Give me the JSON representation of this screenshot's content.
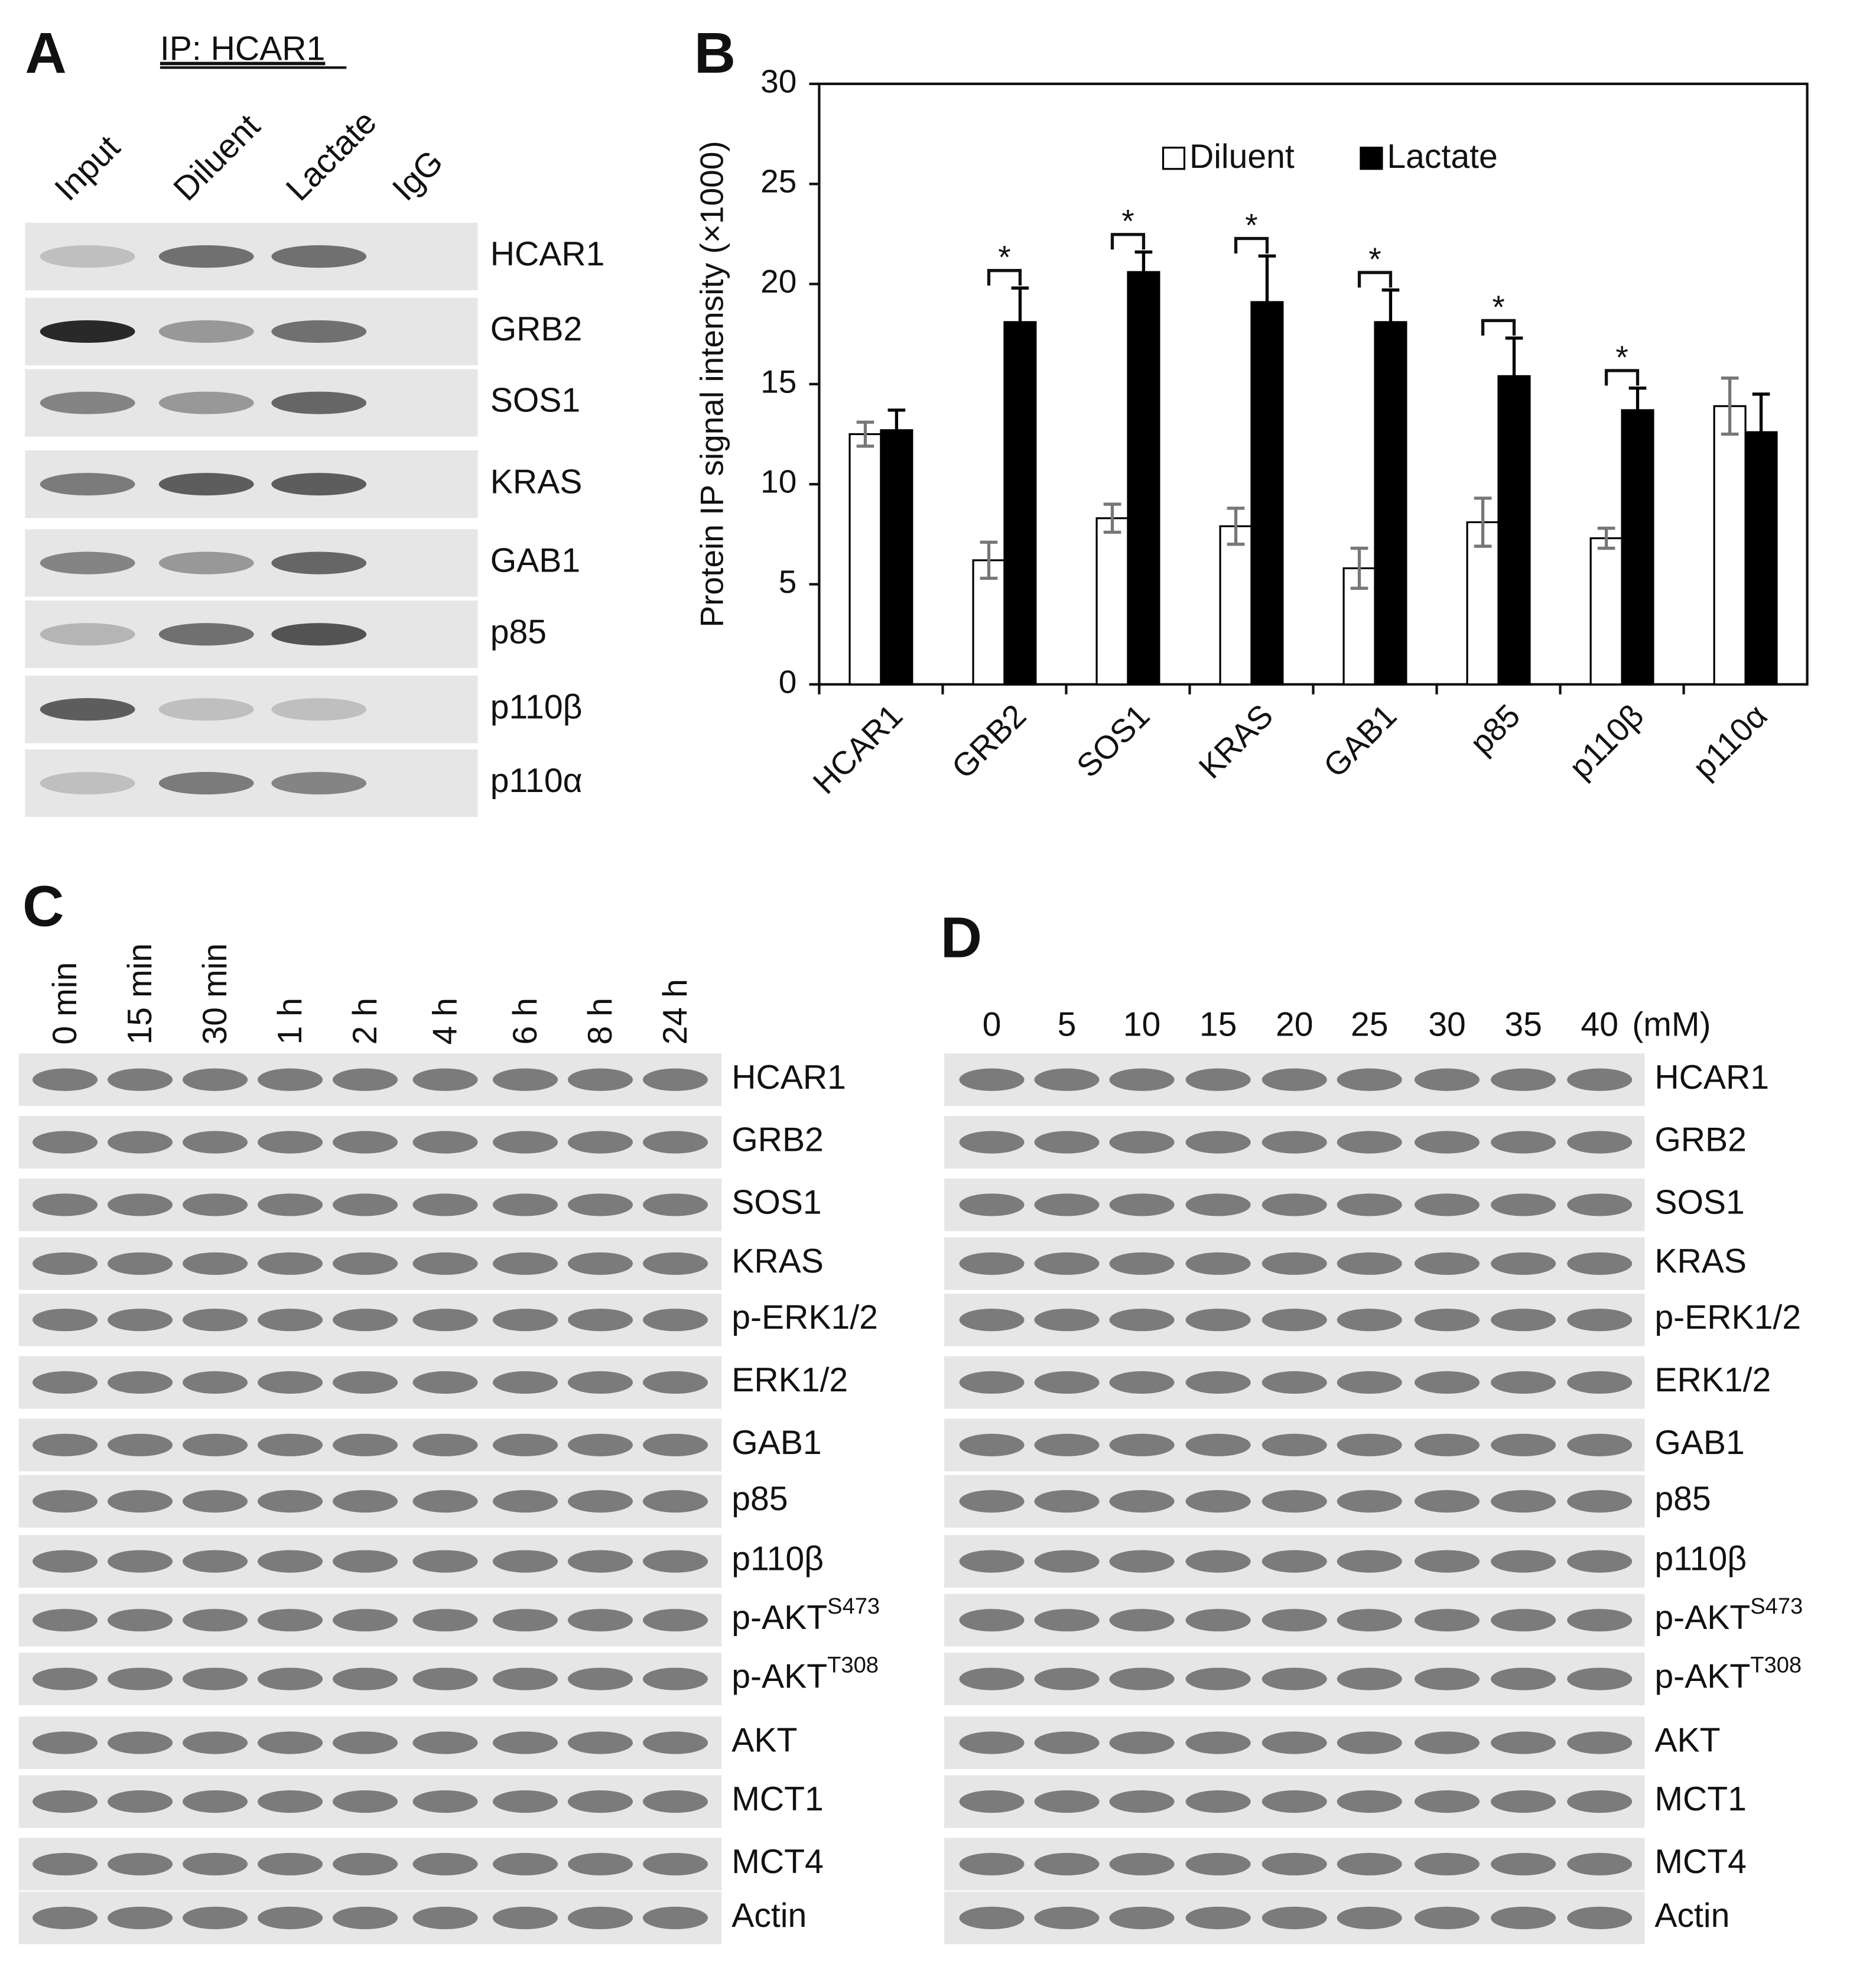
{
  "panels": {
    "a": {
      "letter": "A",
      "header": "IP: HCAR1",
      "lanes": [
        "Input",
        "Diluent",
        "Lactate",
        "IgG"
      ],
      "rows": [
        "HCAR1",
        "GRB2",
        "SOS1",
        "KRAS",
        "GAB1",
        "p85",
        "p110β",
        "p110α"
      ]
    },
    "b": {
      "letter": "B"
    },
    "c": {
      "letter": "C",
      "lanes": [
        "0 min",
        "15 min",
        "30 min",
        "1 h",
        "2 h",
        "4 h",
        "6 h",
        "8 h",
        "24 h"
      ],
      "rows": [
        "HCAR1",
        "GRB2",
        "SOS1",
        "KRAS",
        "p-ERK1/2",
        "ERK1/2",
        "GAB1",
        "p85",
        "p110β",
        {
          "text": "p-AKT",
          "sup": "S473"
        },
        {
          "text": "p-AKT",
          "sup": "T308"
        },
        "AKT",
        "MCT1",
        "MCT4",
        "Actin"
      ]
    },
    "d": {
      "letter": "D",
      "lanes": [
        "0",
        "5",
        "10",
        "15",
        "20",
        "25",
        "30",
        "35",
        "40"
      ],
      "unit": "(mM)",
      "rows": [
        "HCAR1",
        "GRB2",
        "SOS1",
        "KRAS",
        "p-ERK1/2",
        "ERK1/2",
        "GAB1",
        "p85",
        "p110β",
        {
          "text": "p-AKT",
          "sup": "S473"
        },
        {
          "text": "p-AKT",
          "sup": "T308"
        },
        "AKT",
        "MCT1",
        "MCT4",
        "Actin"
      ]
    }
  },
  "chart_data": {
    "type": "bar",
    "y_label": "Protein IP signal intensity (×1000)",
    "categories": [
      "HCAR1",
      "GRB2",
      "SOS1",
      "KRAS",
      "GAB1",
      "p85",
      "p110β",
      "p110α"
    ],
    "series": [
      {
        "name": "Diluent",
        "color": "#ffffff",
        "error_color": "#777777",
        "values": [
          12.5,
          6.2,
          8.3,
          7.9,
          5.8,
          8.1,
          7.3,
          13.9
        ],
        "errors": [
          0.6,
          0.9,
          0.7,
          0.9,
          1.0,
          1.2,
          0.5,
          1.4
        ]
      },
      {
        "name": "Lactate",
        "color": "#000000",
        "error_color": "#000000",
        "values": [
          12.7,
          18.1,
          20.6,
          19.1,
          18.1,
          15.4,
          13.7,
          12.6
        ],
        "errors": [
          1.0,
          1.7,
          1.0,
          2.3,
          1.6,
          1.9,
          1.1,
          1.9
        ]
      }
    ],
    "annotations": [
      {
        "text": "*",
        "category": "GRB2"
      },
      {
        "text": "*",
        "category": "SOS1"
      },
      {
        "text": "*",
        "category": "KRAS"
      },
      {
        "text": "*",
        "category": "GAB1"
      },
      {
        "text": "*",
        "category": "p85"
      },
      {
        "text": "*",
        "category": "p110β"
      }
    ],
    "ylim": [
      0,
      30
    ],
    "yticks": [
      0,
      5,
      10,
      15,
      20,
      25,
      30
    ],
    "grid": false,
    "legend": "top"
  }
}
